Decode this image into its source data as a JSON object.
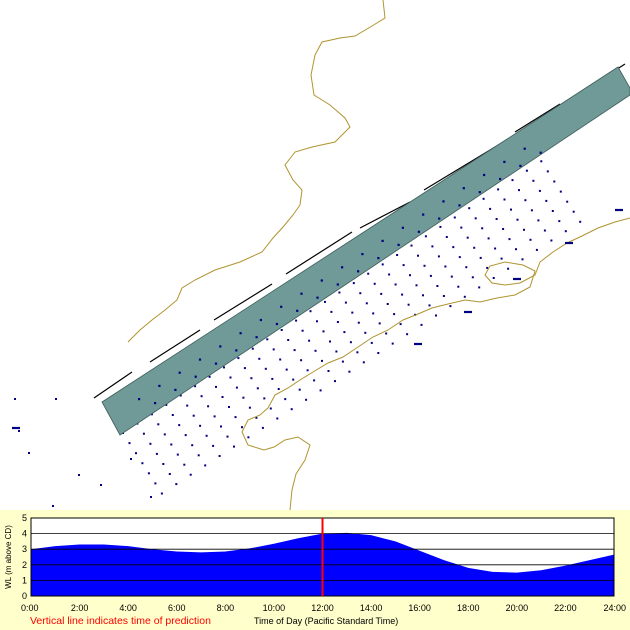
{
  "map": {
    "colors": {
      "background": "#ffffff",
      "shoreline": "#b09430",
      "channel_fill": "#6f9a98",
      "channel_stroke": "#3e5c5a",
      "arrow": "#000080",
      "bank_line": "#000000"
    }
  },
  "tide_panel": {
    "background": "#ffffcc",
    "note": "Vertical line indicates time of prediction",
    "note_color": "#ff0000"
  },
  "chart_data": {
    "type": "area",
    "ylabel": "WL (m above CD)",
    "xlabel": "Time of Day (Pacific Standard Time)",
    "ylim": [
      0,
      5
    ],
    "yticks": [
      "0",
      "1",
      "2",
      "3",
      "4",
      "5"
    ],
    "xlim": [
      0,
      24
    ],
    "xticks": [
      "0:00",
      "2:00",
      "4:00",
      "6:00",
      "8:00",
      "10:00",
      "12:00",
      "14:00",
      "16:00",
      "18:00",
      "20:00",
      "22:00",
      "24:00"
    ],
    "grid": true,
    "fill_color": "#0000ff",
    "marker_color": "#ff0000",
    "prediction_time_hours": 12,
    "x": [
      0,
      1,
      2,
      3,
      4,
      5,
      6,
      7,
      8,
      9,
      10,
      11,
      12,
      13,
      14,
      15,
      16,
      17,
      18,
      19,
      20,
      21,
      22,
      23,
      24
    ],
    "values": [
      3.0,
      3.2,
      3.3,
      3.3,
      3.2,
      3.0,
      2.85,
      2.8,
      2.85,
      3.05,
      3.35,
      3.7,
      4.0,
      4.05,
      3.9,
      3.5,
      2.9,
      2.3,
      1.8,
      1.55,
      1.5,
      1.65,
      1.95,
      2.3,
      2.65
    ]
  }
}
